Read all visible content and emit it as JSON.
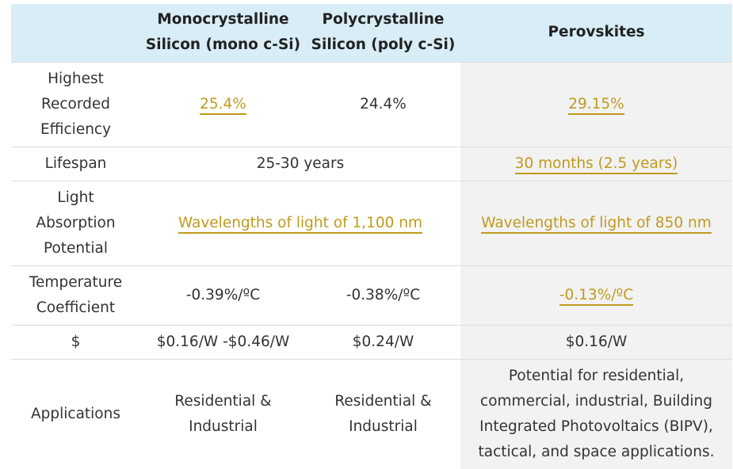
{
  "header": {
    "col0": "",
    "mono_line1": "Monocrystalline",
    "mono_line2": "Silicon (mono c-Si)",
    "poly_line1": "Polycrystalline",
    "poly_line2": "Silicon (poly c-Si)",
    "perovskite": "Perovskites"
  },
  "rows": {
    "efficiency": {
      "label_line1": "Highest",
      "label_line2": "Recorded",
      "label_line3": "Efficiency",
      "mono": "25.4%",
      "poly": "24.4%",
      "perovskite": "29.15%"
    },
    "lifespan": {
      "label": "Lifespan",
      "silicon": "25-30 years",
      "perovskite": "30 months (2.5 years)"
    },
    "absorption": {
      "label_line1": "Light",
      "label_line2": "Absorption",
      "label_line3": "Potential",
      "silicon": "Wavelengths of light of 1,100 nm",
      "perovskite": "Wavelengths of light of 850 nm"
    },
    "temperature": {
      "label_line1": "Temperature",
      "label_line2": "Coefficient",
      "mono": "-0.39%/ºC",
      "poly": "-0.38%/ºC",
      "perovskite": "-0.13%/ºC"
    },
    "cost": {
      "label": "$",
      "mono": "$0.16/W -$0.46/W",
      "poly": "$0.24/W",
      "perovskite": "$0.16/W"
    },
    "applications": {
      "label": "Applications",
      "mono_line1": "Residential &",
      "mono_line2": "Industrial",
      "poly_line1": "Residential &",
      "poly_line2": "Industrial",
      "perovskite_line1": "Potential for residential,",
      "perovskite_line2": "commercial, industrial, Building",
      "perovskite_line3": "Integrated Photovoltaics (BIPV),",
      "perovskite_line4": "tactical, and space applications."
    }
  },
  "colors": {
    "header_bg": "#d8edf6",
    "perovskite_bg": "#f2f2f2",
    "highlight": "#c09a1e",
    "text": "#333333"
  }
}
